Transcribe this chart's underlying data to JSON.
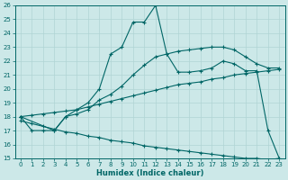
{
  "xlabel": "Humidex (Indice chaleur)",
  "xlim": [
    -0.5,
    23.5
  ],
  "ylim": [
    15,
    26
  ],
  "xticks": [
    0,
    1,
    2,
    3,
    4,
    5,
    6,
    7,
    8,
    9,
    10,
    11,
    12,
    13,
    14,
    15,
    16,
    17,
    18,
    19,
    20,
    21,
    22,
    23
  ],
  "yticks": [
    15,
    16,
    17,
    18,
    19,
    20,
    21,
    22,
    23,
    24,
    25,
    26
  ],
  "bg_color": "#cce8e8",
  "line_color": "#006666",
  "grid_color": "#b0d4d4",
  "curve1_x": [
    0,
    1,
    2,
    3,
    4,
    5,
    6,
    7,
    8,
    9,
    10,
    11,
    12,
    13,
    14,
    15,
    16,
    17,
    18,
    19,
    20,
    21,
    22,
    23
  ],
  "curve1_y": [
    18,
    17,
    17,
    17,
    18,
    18.5,
    19,
    20,
    22.5,
    23,
    24.8,
    24.8,
    26,
    22.5,
    21.2,
    21.2,
    21.3,
    21.5,
    22,
    21.8,
    21.3,
    21.3,
    17,
    15
  ],
  "curve2_x": [
    0,
    3,
    4,
    5,
    6,
    7,
    8,
    9,
    10,
    11,
    12,
    13,
    14,
    15,
    16,
    17,
    18,
    19,
    20,
    21,
    22,
    23
  ],
  "curve2_y": [
    18,
    17,
    18,
    18.2,
    18.5,
    19.2,
    19.6,
    20.2,
    21.0,
    21.7,
    22.3,
    22.5,
    22.7,
    22.8,
    22.9,
    23.0,
    23.0,
    22.8,
    22.3,
    21.8,
    21.5,
    21.5
  ],
  "curve3_x": [
    0,
    1,
    2,
    3,
    4,
    5,
    6,
    7,
    8,
    9,
    10,
    11,
    12,
    13,
    14,
    15,
    16,
    17,
    18,
    19,
    20,
    21,
    22,
    23
  ],
  "curve3_y": [
    18.0,
    18.1,
    18.2,
    18.3,
    18.4,
    18.5,
    18.7,
    18.9,
    19.1,
    19.3,
    19.5,
    19.7,
    19.9,
    20.1,
    20.3,
    20.4,
    20.5,
    20.7,
    20.8,
    21.0,
    21.1,
    21.2,
    21.3,
    21.4
  ],
  "curve4_x": [
    0,
    1,
    2,
    3,
    4,
    5,
    6,
    7,
    8,
    9,
    10,
    11,
    12,
    13,
    14,
    15,
    16,
    17,
    18,
    19,
    20,
    21,
    22,
    23
  ],
  "curve4_y": [
    17.7,
    17.5,
    17.3,
    17.1,
    16.9,
    16.8,
    16.6,
    16.5,
    16.3,
    16.2,
    16.1,
    15.9,
    15.8,
    15.7,
    15.6,
    15.5,
    15.4,
    15.3,
    15.2,
    15.1,
    15.0,
    15.0,
    14.9,
    15.0
  ]
}
